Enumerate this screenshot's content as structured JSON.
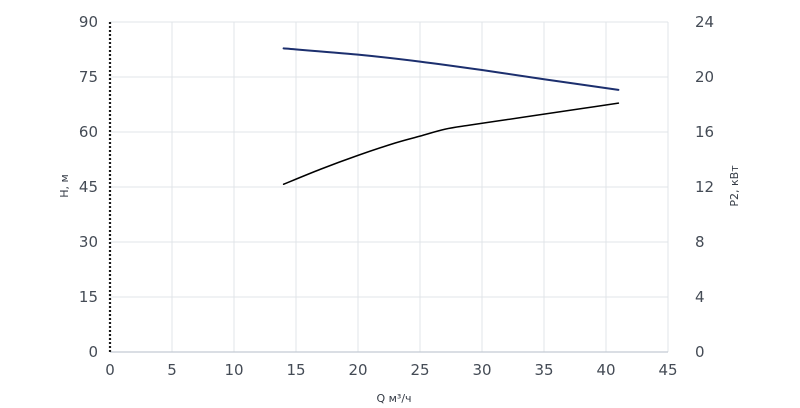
{
  "chart_data": {
    "type": "line",
    "xlabel": "Q м³/ч",
    "ylabel_left": "H, м",
    "ylabel_right": "P2, кВт",
    "x_ticks": [
      0,
      5,
      10,
      15,
      20,
      25,
      30,
      35,
      40,
      45
    ],
    "y_left_ticks": [
      0,
      15,
      30,
      45,
      60,
      75,
      90
    ],
    "y_right_ticks": [
      0,
      4,
      8,
      12,
      16,
      20,
      24
    ],
    "xlim": [
      0,
      45
    ],
    "ylim_left": [
      0,
      90
    ],
    "ylim_right": [
      0,
      24
    ],
    "grid": true,
    "series": [
      {
        "axis": "left",
        "color": "#1c2f6e",
        "points": [
          [
            14,
            82.8
          ],
          [
            20,
            81.1
          ],
          [
            25,
            79.2
          ],
          [
            30,
            76.9
          ],
          [
            35,
            74.4
          ],
          [
            41,
            71.5
          ]
        ]
      },
      {
        "axis": "right",
        "color": "#000000",
        "points": [
          [
            14,
            12.2
          ],
          [
            17,
            13.3
          ],
          [
            20,
            14.3
          ],
          [
            23,
            15.2
          ],
          [
            25,
            15.7
          ],
          [
            27,
            16.2
          ],
          [
            29,
            16.5
          ],
          [
            32,
            16.9
          ],
          [
            35,
            17.3
          ],
          [
            38,
            17.7
          ],
          [
            41,
            18.1
          ]
        ]
      }
    ]
  }
}
